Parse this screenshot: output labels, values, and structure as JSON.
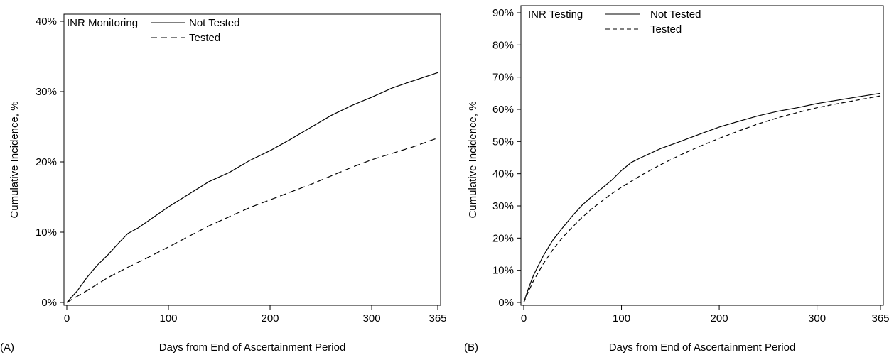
{
  "chart_data": [
    {
      "type": "line",
      "panel_label": "(A)",
      "xlabel": "Days from End of Ascertainment Period",
      "ylabel": "Cumulative Incidence, %",
      "xlim": [
        0,
        365
      ],
      "ylim": [
        0,
        40
      ],
      "x_ticks": [
        0,
        100,
        200,
        300,
        365
      ],
      "x_tick_labels": [
        "0",
        "100",
        "200",
        "300",
        "365"
      ],
      "y_ticks": [
        0,
        10,
        20,
        30,
        40
      ],
      "y_tick_labels": [
        "0%",
        "10%",
        "20%",
        "30%",
        "40%"
      ],
      "grid": false,
      "legend": {
        "title": "INR Monitoring",
        "placement": "top-left",
        "entries": [
          {
            "name": "Not Tested",
            "style": "solid"
          },
          {
            "name": "Tested",
            "style": "dashed"
          }
        ]
      },
      "series": [
        {
          "name": "Not Tested",
          "style": "solid",
          "x": [
            0,
            10,
            20,
            30,
            40,
            50,
            60,
            70,
            80,
            90,
            100,
            120,
            140,
            160,
            180,
            200,
            220,
            240,
            260,
            280,
            300,
            320,
            340,
            365
          ],
          "y": [
            0,
            1.6,
            3.6,
            5.3,
            6.7,
            8.3,
            9.8,
            10.6,
            11.6,
            12.6,
            13.6,
            15.4,
            17.2,
            18.5,
            20.2,
            21.6,
            23.2,
            24.9,
            26.6,
            28.0,
            29.2,
            30.5,
            31.5,
            32.7
          ]
        },
        {
          "name": "Tested",
          "style": "dashed",
          "x": [
            0,
            20,
            40,
            60,
            80,
            100,
            120,
            140,
            160,
            180,
            200,
            220,
            240,
            260,
            280,
            300,
            320,
            340,
            365
          ],
          "y": [
            0,
            1.7,
            3.5,
            5.0,
            6.4,
            7.9,
            9.4,
            10.9,
            12.2,
            13.5,
            14.6,
            15.7,
            16.8,
            18.0,
            19.2,
            20.3,
            21.2,
            22.1,
            23.4
          ]
        }
      ]
    },
    {
      "type": "line",
      "panel_label": "(B)",
      "xlabel": "Days from End of Ascertainment Period",
      "ylabel": "Cumulative Incidence, %",
      "xlim": [
        0,
        365
      ],
      "ylim": [
        0,
        90
      ],
      "x_ticks": [
        0,
        100,
        200,
        300,
        365
      ],
      "x_tick_labels": [
        "0",
        "100",
        "200",
        "300",
        "365"
      ],
      "y_ticks": [
        0,
        10,
        20,
        30,
        40,
        50,
        60,
        70,
        80,
        90
      ],
      "y_tick_labels": [
        "0%",
        "10%",
        "20%",
        "30%",
        "40%",
        "50%",
        "60%",
        "70%",
        "80%",
        "90%"
      ],
      "grid": false,
      "legend": {
        "title": "INR Testing",
        "placement": "top-left",
        "entries": [
          {
            "name": "Not Tested",
            "style": "solid"
          },
          {
            "name": "Tested",
            "style": "dashed"
          }
        ]
      },
      "series": [
        {
          "name": "Not Tested",
          "style": "solid",
          "x": [
            0,
            5,
            10,
            20,
            30,
            40,
            50,
            60,
            70,
            80,
            90,
            100,
            110,
            120,
            140,
            160,
            180,
            200,
            220,
            240,
            260,
            280,
            300,
            320,
            340,
            365
          ],
          "y": [
            0,
            4.5,
            8.5,
            14.5,
            19.5,
            23.3,
            27.0,
            30.3,
            33.0,
            35.5,
            38.0,
            41.0,
            43.5,
            45.0,
            47.8,
            50.0,
            52.3,
            54.5,
            56.3,
            58.0,
            59.4,
            60.5,
            61.8,
            62.8,
            63.8,
            65.0
          ]
        },
        {
          "name": "Tested",
          "style": "dashed",
          "x": [
            0,
            5,
            10,
            20,
            30,
            40,
            50,
            60,
            70,
            80,
            90,
            100,
            120,
            140,
            160,
            180,
            200,
            220,
            240,
            260,
            280,
            300,
            320,
            340,
            365
          ],
          "y": [
            0,
            3.5,
            6.8,
            12.0,
            16.5,
            20.3,
            23.5,
            26.5,
            29.2,
            31.5,
            33.8,
            35.8,
            39.5,
            42.8,
            45.8,
            48.5,
            51.0,
            53.3,
            55.5,
            57.4,
            59.0,
            60.5,
            61.7,
            62.8,
            64.2
          ]
        }
      ]
    }
  ]
}
